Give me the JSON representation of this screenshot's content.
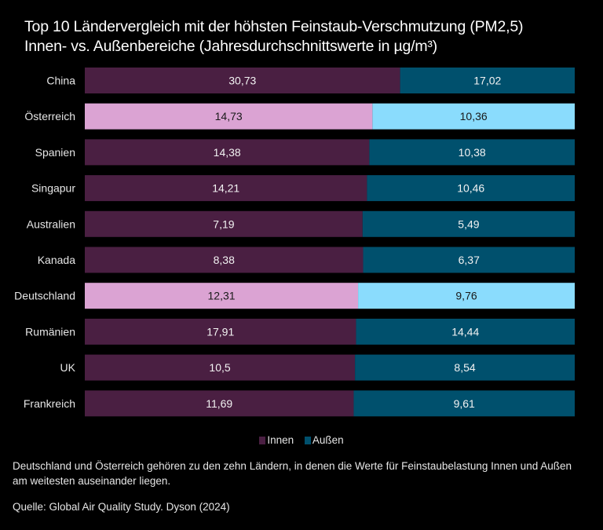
{
  "chart_data": {
    "type": "bar",
    "orientation": "horizontal",
    "stacking": "percent",
    "title": "Top 10  Ländervergleich mit der höhsten Feinstaub-Verschmutzung (PM2,5)",
    "subtitle": "Innen- vs. Außenbereiche (Jahresdurchschnittswerte in µg/m³)",
    "xlabel": "",
    "ylabel": "",
    "grid": false,
    "legend_position": "bottom",
    "categories": [
      "China",
      "Österreich",
      "Spanien",
      "Singapur",
      "Australien",
      "Kanada",
      "Deutschland",
      "Rumänien",
      "UK",
      "Frankreich"
    ],
    "highlighted": [
      "Österreich",
      "Deutschland"
    ],
    "series": [
      {
        "name": "Innen",
        "color": "#4a1f42",
        "highlight_color": "#dba3d3",
        "values": [
          30.73,
          14.73,
          14.38,
          14.21,
          7.19,
          8.38,
          12.31,
          17.91,
          10.5,
          11.69
        ],
        "labels": [
          "30,73",
          "14,73",
          "14,38",
          "14,21",
          "7,19",
          "8,38",
          "12,31",
          "17,91",
          "10,5",
          "11,69"
        ]
      },
      {
        "name": "Außen",
        "color": "#00506d",
        "highlight_color": "#8adcfd",
        "values": [
          17.02,
          10.36,
          10.38,
          10.46,
          5.49,
          6.37,
          9.76,
          14.44,
          8.54,
          9.61
        ],
        "labels": [
          "17,02",
          "10,36",
          "10,38",
          "10,46",
          "5,49",
          "6,37",
          "9,76",
          "14,44",
          "8,54",
          "9,61"
        ]
      }
    ]
  },
  "text": {
    "title_line1": "Top 10  Ländervergleich mit der höhsten Feinstaub-Verschmutzung (PM2,5)",
    "title_line2": "Innen- vs. Außenbereiche (Jahresdurchschnittswerte in µg/m³)",
    "legend_innen": "Innen",
    "legend_aussen": "Außen",
    "note": "Deutschland und Österreich gehören zu den zehn Ländern, in denen die Werte für Feinstaubelastung Innen und Außen am weitesten auseinander liegen.",
    "source": "Quelle: Global Air Quality Study. Dyson (2024)"
  },
  "colors": {
    "background": "#000000",
    "label_light": "#ffffff",
    "label_dark": "#1a1a1a"
  }
}
